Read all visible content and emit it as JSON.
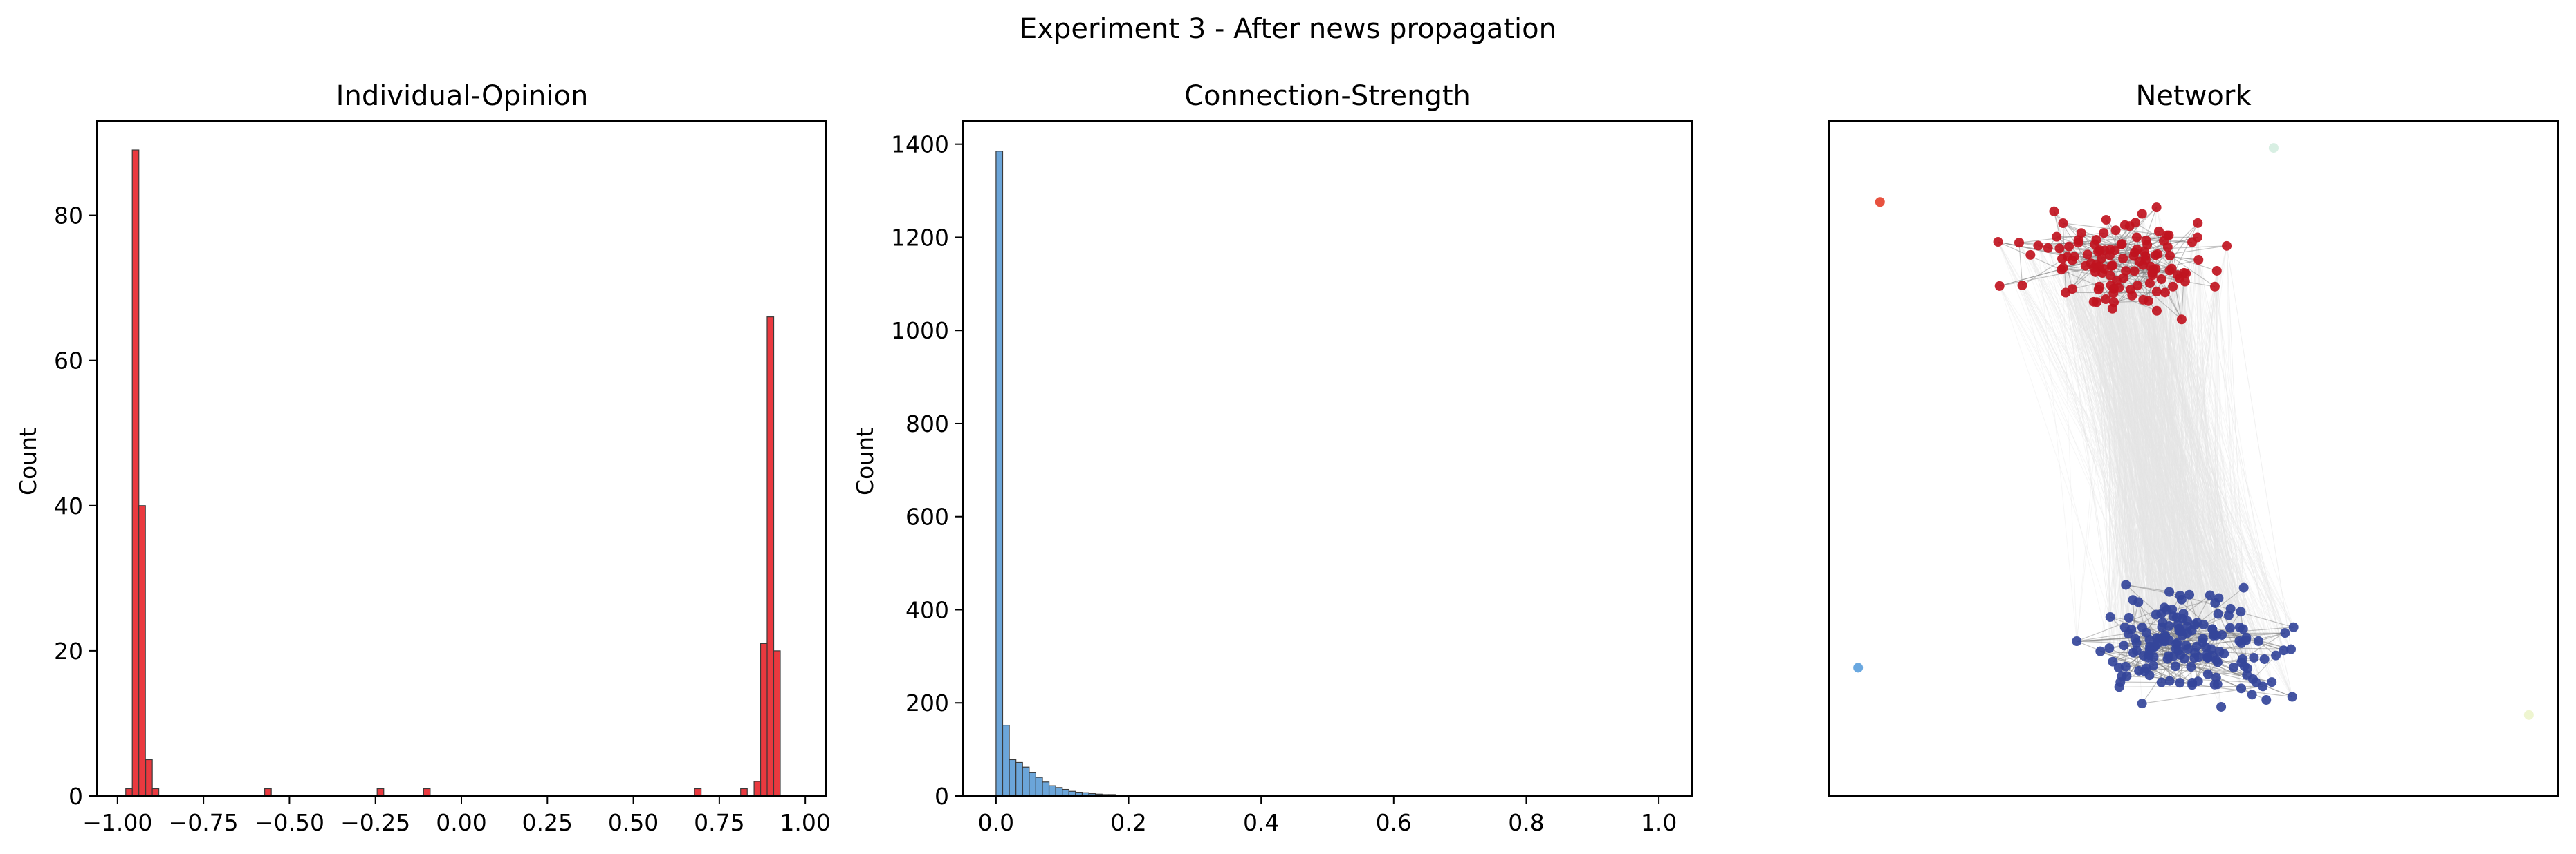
{
  "figure": {
    "title": "Experiment 3 - After news propagation"
  },
  "chart_data": [
    {
      "type": "bar",
      "title": "Individual-Opinion",
      "xlabel": "",
      "ylabel": "Count",
      "xlim": [
        -1.06,
        1.06
      ],
      "ylim": [
        0,
        93
      ],
      "xticks": [
        -1.0,
        -0.75,
        -0.5,
        -0.25,
        0.0,
        0.25,
        0.5,
        0.75,
        1.0
      ],
      "xtick_labels": [
        "−1.00",
        "−0.75",
        "−0.50",
        "−0.25",
        "0.00",
        "0.25",
        "0.50",
        "0.75",
        "1.00"
      ],
      "yticks": [
        0,
        20,
        40,
        60,
        80
      ],
      "ytick_labels": [
        "0",
        "20",
        "40",
        "60",
        "80"
      ],
      "bin_width": 0.0192,
      "color": "#e8242a",
      "bins": [
        {
          "x0": -0.976,
          "count": 1
        },
        {
          "x0": -0.957,
          "count": 89
        },
        {
          "x0": -0.938,
          "count": 40
        },
        {
          "x0": -0.918,
          "count": 5
        },
        {
          "x0": -0.899,
          "count": 1
        },
        {
          "x0": -0.572,
          "count": 1
        },
        {
          "x0": -0.245,
          "count": 1
        },
        {
          "x0": -0.11,
          "count": 1
        },
        {
          "x0": 0.678,
          "count": 1
        },
        {
          "x0": 0.812,
          "count": 1
        },
        {
          "x0": 0.851,
          "count": 2
        },
        {
          "x0": 0.87,
          "count": 21
        },
        {
          "x0": 0.889,
          "count": 66
        },
        {
          "x0": 0.908,
          "count": 20
        }
      ]
    },
    {
      "type": "bar",
      "title": "Connection-Strength",
      "xlabel": "",
      "ylabel": "Count",
      "xlim": [
        -0.05,
        1.05
      ],
      "ylim": [
        0,
        1450
      ],
      "xticks": [
        0.0,
        0.2,
        0.4,
        0.6,
        0.8,
        1.0
      ],
      "xtick_labels": [
        "0.0",
        "0.2",
        "0.4",
        "0.6",
        "0.8",
        "1.0"
      ],
      "yticks": [
        0,
        200,
        400,
        600,
        800,
        1000,
        1200,
        1400
      ],
      "ytick_labels": [
        "0",
        "200",
        "400",
        "600",
        "800",
        "1000",
        "1200",
        "1400"
      ],
      "bin_width": 0.01,
      "color": "#5b9bd5",
      "bins": [
        {
          "x0": 0.0,
          "count": 1385
        },
        {
          "x0": 0.01,
          "count": 152
        },
        {
          "x0": 0.02,
          "count": 78
        },
        {
          "x0": 0.03,
          "count": 72
        },
        {
          "x0": 0.04,
          "count": 62
        },
        {
          "x0": 0.05,
          "count": 50
        },
        {
          "x0": 0.06,
          "count": 40
        },
        {
          "x0": 0.07,
          "count": 30
        },
        {
          "x0": 0.08,
          "count": 22
        },
        {
          "x0": 0.09,
          "count": 18
        },
        {
          "x0": 0.1,
          "count": 14
        },
        {
          "x0": 0.11,
          "count": 10
        },
        {
          "x0": 0.12,
          "count": 8
        },
        {
          "x0": 0.13,
          "count": 7
        },
        {
          "x0": 0.14,
          "count": 5
        },
        {
          "x0": 0.15,
          "count": 4
        },
        {
          "x0": 0.16,
          "count": 3
        },
        {
          "x0": 0.17,
          "count": 3
        },
        {
          "x0": 0.18,
          "count": 2
        },
        {
          "x0": 0.19,
          "count": 2
        },
        {
          "x0": 0.2,
          "count": 1
        },
        {
          "x0": 0.21,
          "count": 1
        }
      ]
    },
    {
      "type": "scatter",
      "title": "Network",
      "xlabel": "",
      "ylabel": "",
      "axes_visible": false,
      "clusters": [
        {
          "name": "",
          "color": "#c0141f",
          "count": 120,
          "center": [
            0.4,
            0.79
          ],
          "spread": [
            0.23,
            0.12
          ]
        },
        {
          "name": "",
          "color": "#34459a",
          "count": 160,
          "center": [
            0.5,
            0.22
          ],
          "spread": [
            0.23,
            0.13
          ]
        }
      ],
      "outlier_nodes": [
        {
          "x": 0.07,
          "y": 0.88,
          "color": "#e8523f"
        },
        {
          "x": 0.04,
          "y": 0.19,
          "color": "#6aa8e0"
        },
        {
          "x": 0.61,
          "y": 0.96,
          "color": "#d8efe3"
        },
        {
          "x": 0.96,
          "y": 0.12,
          "color": "#eef5d0"
        }
      ],
      "edge_color": "#7a7a7a",
      "bridge_edge_color": "#e6e6e6"
    }
  ]
}
